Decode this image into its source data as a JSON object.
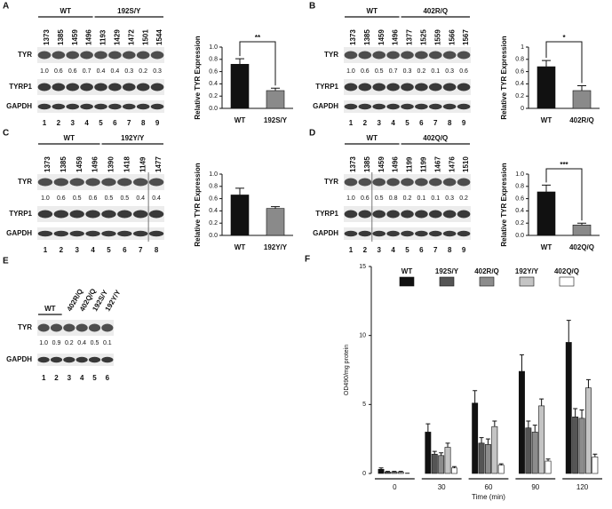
{
  "panels": [
    {
      "letter": "A",
      "groups": [
        {
          "label": "WT",
          "lanes": 4
        },
        {
          "label": "192S/Y",
          "lanes": 5
        }
      ],
      "samples": [
        "1373",
        "1385",
        "1459",
        "1496",
        "1193",
        "1429",
        "1472",
        "1501",
        "1544"
      ],
      "rows": [
        {
          "label": "TYR",
          "quant": [
            "1.0",
            "0.6",
            "0.6",
            "0.7",
            "0.4",
            "0.4",
            "0.3",
            "0.2",
            "0.3"
          ]
        },
        {
          "label": "TYRP1"
        },
        {
          "label": "GAPDH"
        }
      ],
      "lanes": [
        1,
        2,
        3,
        4,
        5,
        6,
        7,
        8,
        9
      ]
    },
    {
      "letter": "B",
      "groups": [
        {
          "label": "WT",
          "lanes": 4
        },
        {
          "label": "402R/Q",
          "lanes": 5
        }
      ],
      "samples": [
        "1373",
        "1385",
        "1459",
        "1496",
        "1377",
        "1525",
        "1559",
        "1566",
        "1567"
      ],
      "rows": [
        {
          "label": "TYR",
          "quant": [
            "1.0",
            "0.6",
            "0.5",
            "0.7",
            "0.3",
            "0.2",
            "0.1",
            "0.3",
            "0.6"
          ]
        },
        {
          "label": "TYRP1"
        },
        {
          "label": "GAPDH"
        }
      ],
      "lanes": [
        1,
        2,
        3,
        4,
        5,
        6,
        7,
        8,
        9
      ]
    },
    {
      "letter": "C",
      "groups": [
        {
          "label": "WT",
          "lanes": 4
        },
        {
          "label": "192Y/Y",
          "lanes": 4
        }
      ],
      "samples": [
        "1373",
        "1385",
        "1459",
        "1496",
        "1390",
        "1418",
        "1149",
        "1477"
      ],
      "rows": [
        {
          "label": "TYR",
          "quant": [
            "1.0",
            "0.6",
            "0.5",
            "0.6",
            "0.5",
            "0.5",
            "0.4",
            "0.4"
          ]
        },
        {
          "label": "TYRP1"
        },
        {
          "label": "GAPDH"
        }
      ],
      "lanes": [
        1,
        2,
        3,
        4,
        5,
        6,
        7,
        8
      ]
    },
    {
      "letter": "D",
      "groups": [
        {
          "label": "WT",
          "lanes": 4
        },
        {
          "label": "402Q/Q",
          "lanes": 5
        }
      ],
      "samples": [
        "1373",
        "1385",
        "1459",
        "1496",
        "1199",
        "1199",
        "1467",
        "1476",
        "1510"
      ],
      "rows": [
        {
          "label": "TYR",
          "quant": [
            "1.0",
            "0.6",
            "0.5",
            "0.8",
            "0.2",
            "0.1",
            "0.1",
            "0.3",
            "0.2"
          ]
        },
        {
          "label": "TYRP1"
        },
        {
          "label": "GAPDH"
        }
      ],
      "lanes": [
        1,
        2,
        3,
        4,
        5,
        6,
        7,
        8,
        9
      ]
    },
    {
      "letter": "E",
      "groups": [
        {
          "label": "WT",
          "lanes": 2
        }
      ],
      "lane_labels": [
        "402R/Q",
        "402Q/Q",
        "192S/Y",
        "192Y/Y"
      ],
      "rows": [
        {
          "label": "TYR",
          "quant": [
            "1.0",
            "0.9",
            "0.2",
            "0.4",
            "0.5",
            "0.1"
          ]
        },
        {
          "label": "GAPDH"
        }
      ],
      "lanes": [
        1,
        2,
        3,
        4,
        5,
        6
      ]
    }
  ],
  "chart_data": [
    {
      "type": "bar",
      "ylabel": "Relative TYR Expression",
      "categories": [
        "WT",
        "192S/Y"
      ],
      "values": [
        0.72,
        0.29
      ],
      "errors": [
        0.09,
        0.04
      ],
      "colors": [
        "#111111",
        "#8a8a8a"
      ],
      "ylim": [
        0,
        1
      ],
      "yticks": [
        {
          "value": 0,
          "label": "0.0"
        },
        0.2,
        0.4,
        0.6,
        0.8,
        {
          "value": 1,
          "label": "1.0"
        }
      ],
      "significance": "**"
    },
    {
      "type": "bar",
      "ylabel": "Relative TYR Expression",
      "categories": [
        "WT",
        "402R/Q"
      ],
      "values": [
        0.68,
        0.29
      ],
      "errors": [
        0.1,
        0.08
      ],
      "colors": [
        "#111111",
        "#8a8a8a"
      ],
      "ylim": [
        0,
        1
      ],
      "yticks": [
        0,
        0.2,
        0.4,
        0.6,
        0.8,
        1
      ],
      "significance": "*"
    },
    {
      "type": "bar",
      "ylabel": "Relative TYR Expression",
      "categories": [
        "WT",
        "192Y/Y"
      ],
      "values": [
        0.66,
        0.44
      ],
      "errors": [
        0.11,
        0.03
      ],
      "colors": [
        "#111111",
        "#8a8a8a"
      ],
      "ylim": [
        0,
        1
      ],
      "yticks": [
        {
          "value": 0,
          "label": "0.0"
        },
        0.2,
        0.4,
        0.6,
        0.8,
        {
          "value": 1,
          "label": "1.0"
        }
      ]
    },
    {
      "type": "bar",
      "ylabel": "Relative TYR Expression",
      "categories": [
        "WT",
        "402Q/Q"
      ],
      "values": [
        0.71,
        0.17
      ],
      "errors": [
        0.11,
        0.03
      ],
      "colors": [
        "#111111",
        "#8a8a8a"
      ],
      "ylim": [
        0,
        1
      ],
      "yticks": [
        {
          "value": 0,
          "label": "0.0"
        },
        0.2,
        0.4,
        0.6,
        0.8,
        {
          "value": 1,
          "label": "1.0"
        }
      ],
      "significance": "***"
    },
    {
      "type": "grouped_bar",
      "panel": "F",
      "xlabel": "Time (min)",
      "ylabel": "OD490/mg protein",
      "categories": [
        "0",
        "30",
        "60",
        "90",
        "120"
      ],
      "ylim": [
        0,
        15
      ],
      "yticks": [
        0,
        5,
        10,
        15
      ],
      "legend": "top",
      "series": [
        {
          "name": "WT",
          "color": "#111111",
          "values": [
            0.3,
            3.0,
            5.1,
            7.4,
            9.5
          ],
          "errors": [
            0.1,
            0.6,
            0.9,
            1.2,
            1.6
          ]
        },
        {
          "name": "192S/Y",
          "color": "#555555",
          "values": [
            0.1,
            1.4,
            2.2,
            3.3,
            4.1
          ],
          "errors": [
            0.05,
            0.2,
            0.4,
            0.5,
            0.6
          ]
        },
        {
          "name": "402R/Q",
          "color": "#8c8c8c",
          "values": [
            0.1,
            1.3,
            2.1,
            3.0,
            4.0
          ],
          "errors": [
            0.05,
            0.2,
            0.4,
            0.5,
            0.6
          ]
        },
        {
          "name": "192Y/Y",
          "color": "#c4c4c4",
          "values": [
            0.1,
            1.9,
            3.4,
            4.9,
            6.2
          ],
          "errors": [
            0.05,
            0.3,
            0.4,
            0.5,
            0.6
          ]
        },
        {
          "name": "402Q/Q",
          "color": "#ffffff",
          "values": [
            0.0,
            0.4,
            0.6,
            0.9,
            1.2
          ],
          "errors": [
            0.02,
            0.1,
            0.1,
            0.15,
            0.2
          ]
        }
      ]
    }
  ]
}
